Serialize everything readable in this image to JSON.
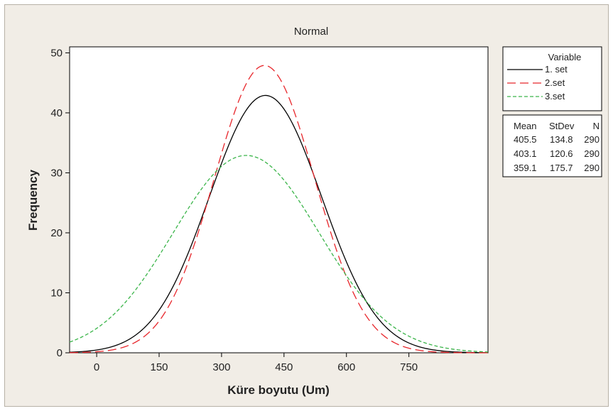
{
  "chart_data": {
    "type": "line",
    "title": "Normal",
    "xlabel": "Küre boyutu (Um)",
    "ylabel": "Frequency",
    "xlim": [
      -65,
      940
    ],
    "ylim": [
      0,
      51
    ],
    "xticks": [
      0,
      150,
      300,
      450,
      600,
      750
    ],
    "yticks": [
      0,
      10,
      20,
      30,
      40,
      50
    ],
    "xtick_labels": [
      "0",
      "150",
      "300",
      "450",
      "600",
      "750"
    ],
    "ytick_labels": [
      "0",
      "10",
      "20",
      "30",
      "40",
      "50"
    ],
    "grid": false,
    "legend_position": "right",
    "legend_title": "Variable",
    "stats_headers": [
      "Mean",
      "StDev",
      "N"
    ],
    "series": [
      {
        "name": "1. set",
        "mean": 405.5,
        "stdev": 134.8,
        "n": 290,
        "peak": 42.9,
        "color": "#000000",
        "dash": "",
        "stats": [
          "405.5",
          "134.8",
          "290"
        ]
      },
      {
        "name": "2.set",
        "mean": 403.1,
        "stdev": 120.6,
        "n": 290,
        "peak": 47.9,
        "color": "#e8262b",
        "dash": "12,6",
        "stats": [
          "403.1",
          "120.6",
          "290"
        ]
      },
      {
        "name": "3.set",
        "mean": 359.1,
        "stdev": 175.7,
        "n": 290,
        "peak": 32.9,
        "color": "#3bb54a",
        "dash": "5,3",
        "stats": [
          "359.1",
          "175.7",
          "290"
        ]
      }
    ]
  }
}
